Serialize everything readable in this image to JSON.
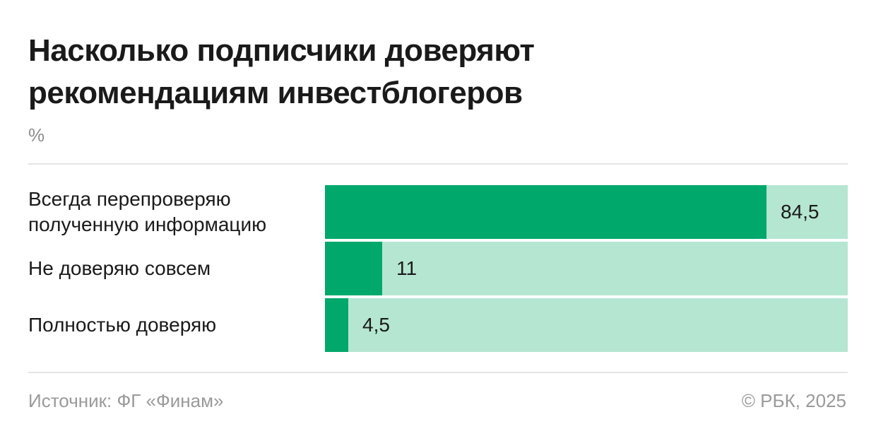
{
  "title": "Насколько подписчики доверяют рекомендациям инвестблогеров",
  "unit": "%",
  "source": "Источник: ФГ «Финам»",
  "copyright": "© РБК, 2025",
  "colors": {
    "bar_fill": "#00a86b",
    "bar_track": "#b5e6d2",
    "text": "#1a1a1a",
    "muted_text": "#9a9a9a"
  },
  "chart_data": {
    "type": "bar",
    "orientation": "horizontal",
    "title": "Насколько подписчики доверяют рекомендациям инвестблогеров",
    "ylabel": "%",
    "xlim": [
      0,
      100
    ],
    "grid": false,
    "categories": [
      "Всегда перепроверяю полученную информацию",
      "Не доверяю совсем",
      "Полностью доверяю"
    ],
    "values": [
      84.5,
      11,
      4.5
    ],
    "value_labels": [
      "84,5",
      "11",
      "4,5"
    ]
  }
}
